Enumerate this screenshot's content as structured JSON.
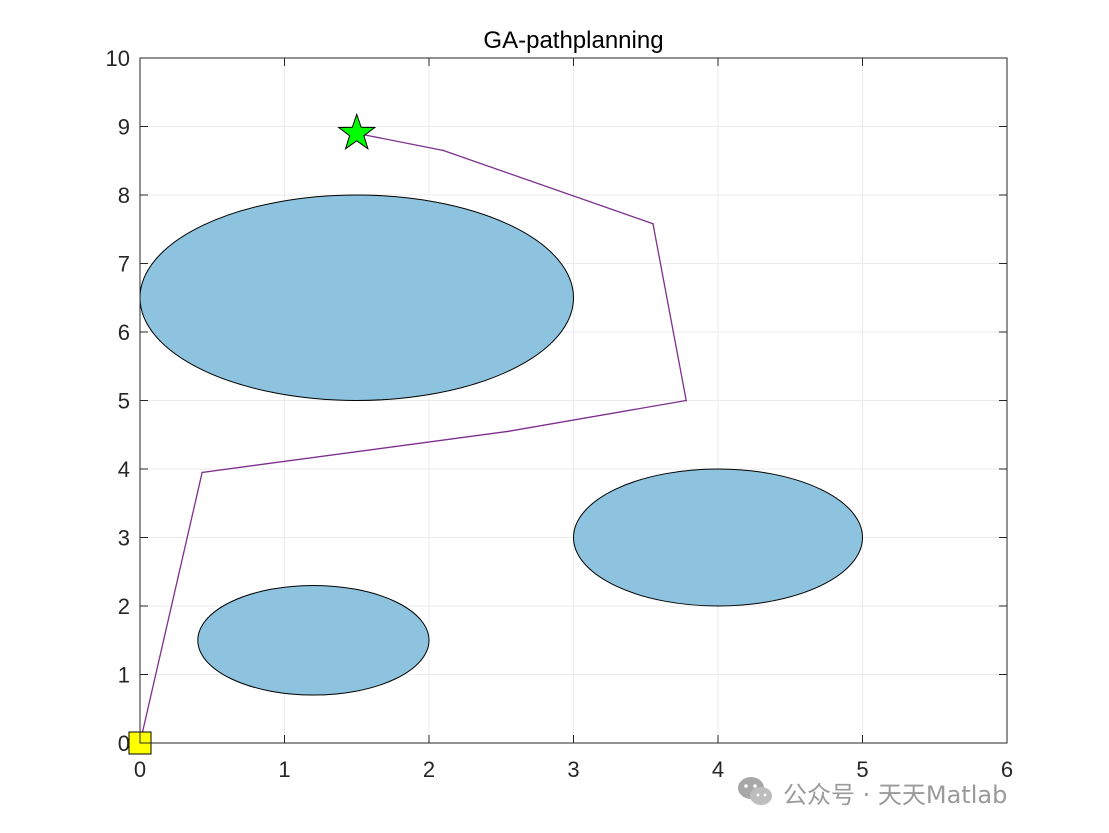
{
  "chart_data": {
    "type": "line",
    "title": "GA-pathplanning",
    "xlim": [
      0,
      6
    ],
    "ylim": [
      0,
      10
    ],
    "x_ticks": [
      "0",
      "1",
      "2",
      "3",
      "4",
      "5",
      "6"
    ],
    "y_ticks": [
      "0",
      "1",
      "2",
      "3",
      "4",
      "5",
      "6",
      "7",
      "8",
      "9",
      "10"
    ],
    "grid": true,
    "obstacles": [
      {
        "cx": 1.5,
        "cy": 6.5,
        "rx": 1.5,
        "ry": 1.5
      },
      {
        "cx": 4.0,
        "cy": 3.0,
        "rx": 1.0,
        "ry": 1.0
      },
      {
        "cx": 1.2,
        "cy": 1.5,
        "rx": 0.8,
        "ry": 0.8
      }
    ],
    "path": [
      [
        0.0,
        0.0
      ],
      [
        0.43,
        3.95
      ],
      [
        2.55,
        4.55
      ],
      [
        3.78,
        5.0
      ],
      [
        3.55,
        7.58
      ],
      [
        2.1,
        8.65
      ],
      [
        1.5,
        8.9
      ]
    ],
    "start": [
      0.0,
      0.0
    ],
    "goal": [
      1.5,
      8.9
    ],
    "colors": {
      "obstacle": "#8dc3de",
      "path": "#7e2f8e",
      "start": "#ffff00",
      "goal": "#00ff00",
      "grid": "#ebebeb"
    }
  },
  "watermark": {
    "text": "公众号 · 天天Matlab",
    "icon": "wechat-icon"
  }
}
